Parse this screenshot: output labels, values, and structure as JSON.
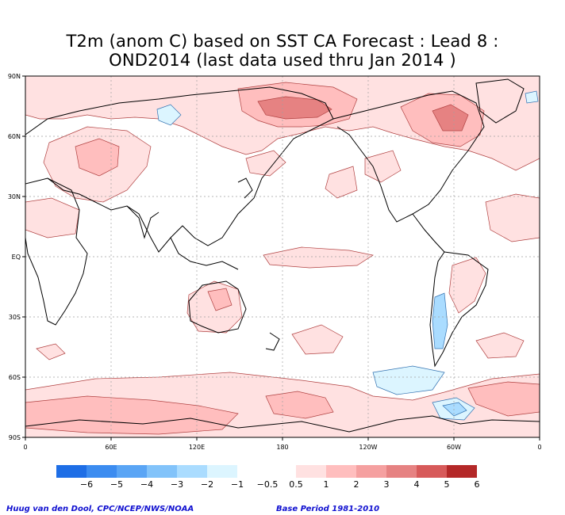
{
  "title": {
    "line1": "T2m (anom C) based on SST CA Forecast : Lead 8 :",
    "line2": "OND2014 (last data used thru Jan 2014 )"
  },
  "map": {
    "projection": "equirectangular",
    "center_longitude": "180",
    "lat_ticks": [
      "90N",
      "60N",
      "30N",
      "EQ",
      "30S",
      "60S",
      "90S"
    ],
    "lon_ticks": [
      "0",
      "60E",
      "120E",
      "180",
      "120W",
      "60W",
      "0"
    ],
    "grid": "dotted"
  },
  "colorbar": {
    "left_colors": [
      "#1e6ee6",
      "#3c8cf0",
      "#5aa5f5",
      "#82c3fa",
      "#aadcff",
      "#dcf5ff"
    ],
    "left_labels": [
      "−6",
      "−5",
      "−4",
      "−3",
      "−2",
      "−1",
      "−0.5"
    ],
    "right_colors": [
      "#ffe1e1",
      "#ffbebe",
      "#f5a0a0",
      "#e68282",
      "#d75a5a",
      "#b42828"
    ],
    "right_labels": [
      "0.5",
      "1",
      "2",
      "3",
      "4",
      "5",
      "6"
    ]
  },
  "colors": {
    "land_outline": "#000000",
    "contour_warm": "#b04040",
    "contour_cold": "#3070b0",
    "grid": "#a0a0a0"
  },
  "credit": {
    "left": "Huug van den Dool, CPC/NCEP/NWS/NOAA",
    "right": "Base Period 1981-2010"
  }
}
